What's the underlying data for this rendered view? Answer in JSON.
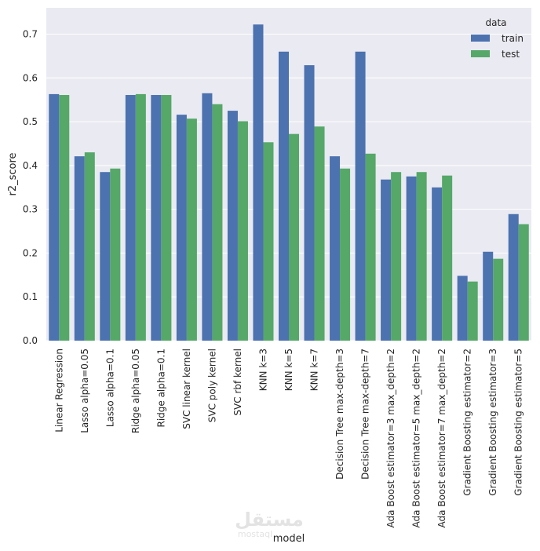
{
  "chart_data": {
    "type": "bar",
    "title": "",
    "xlabel": "model",
    "ylabel": "r2_score",
    "ylim": [
      0,
      0.76
    ],
    "yticks": [
      "0.0",
      "0.1",
      "0.2",
      "0.3",
      "0.4",
      "0.5",
      "0.6",
      "0.7"
    ],
    "grid": true,
    "legend": {
      "title": "data",
      "placement": "top-right"
    },
    "categories": [
      "Linear Regression",
      "Lasso alpha=0.05",
      "Lasso alpha=0.1",
      "Ridge alpha=0.05",
      "Ridge alpha=0.1",
      "SVC linear kernel",
      "SVC poly kernel",
      "SVC rbf kernel",
      "KNN k=3",
      "KNN k=5",
      "KNN k=7",
      "Decision Tree max-depth=3",
      "Decision Tree max-depth=7",
      "Ada Boost estimator=3 max_depth=2",
      "Ada Boost estimator=5 max_depth=2",
      "Ada Boost estimator=7 max_depth=2",
      "Gradient Boosting estimator=2",
      "Gradient Boosting estimator=3",
      "Gradient Boosting estimator=5"
    ],
    "series": [
      {
        "name": "train",
        "color": "#4c72b0",
        "values": [
          0.563,
          0.421,
          0.385,
          0.561,
          0.561,
          0.516,
          0.565,
          0.525,
          0.722,
          0.66,
          0.629,
          0.421,
          0.66,
          0.368,
          0.375,
          0.35,
          0.148,
          0.203,
          0.289
        ]
      },
      {
        "name": "test",
        "color": "#55a868",
        "values": [
          0.561,
          0.43,
          0.393,
          0.563,
          0.561,
          0.507,
          0.54,
          0.501,
          0.453,
          0.472,
          0.489,
          0.393,
          0.427,
          0.385,
          0.385,
          0.377,
          0.135,
          0.187,
          0.266
        ]
      }
    ]
  },
  "watermark": {
    "arabic": "مستقل",
    "latin": "mostaql"
  }
}
